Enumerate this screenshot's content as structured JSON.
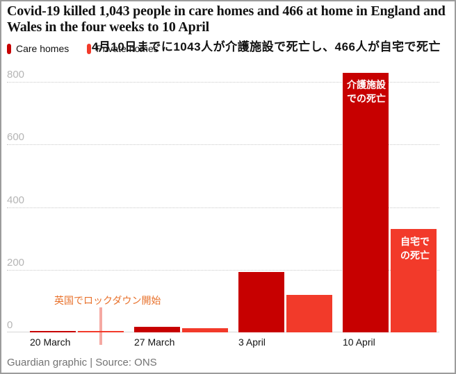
{
  "title": "Covid-19 killed 1,043 people in care homes and 466 at home in England and Wales in the four weeks to 10 April",
  "subtitle_ja": "4月10日までに1043人が介護施設で死亡し、466人が自宅で死亡",
  "legend": {
    "care_label": "Care homes",
    "private_label": "Private homes"
  },
  "footer": "Guardian graphic | Source: ONS",
  "colors": {
    "care": "#c70000",
    "private": "#f23a2a",
    "lockdown_line": "#f5a9a2",
    "lockdown_text": "#e8702a"
  },
  "chart_data": {
    "type": "bar",
    "categories": [
      "20 March",
      "27 March",
      "3 April",
      "10 April"
    ],
    "series": [
      {
        "name": "Care homes",
        "color": "#c70000",
        "values": [
          4,
          18,
          193,
          828
        ]
      },
      {
        "name": "Private homes",
        "color": "#f23a2a",
        "values": [
          4,
          13,
          119,
          330
        ]
      }
    ],
    "title": "Covid-19 killed 1,043 people in care homes and 466 at home in England and Wales in the four weeks to 10 April",
    "xlabel": "",
    "ylabel": "",
    "yticks": [
      0,
      200,
      400,
      600,
      800
    ],
    "ylim": [
      0,
      830
    ],
    "grid": "horizontal-dotted",
    "legend_position": "top-left",
    "annotations": {
      "lockdown": {
        "text": "英国でロックダウン開始"
      },
      "care_bar_label": {
        "line1": "介護施設",
        "line2": "での死亡"
      },
      "private_bar_label": {
        "line1": "自宅で",
        "line2": "の死亡"
      }
    }
  }
}
